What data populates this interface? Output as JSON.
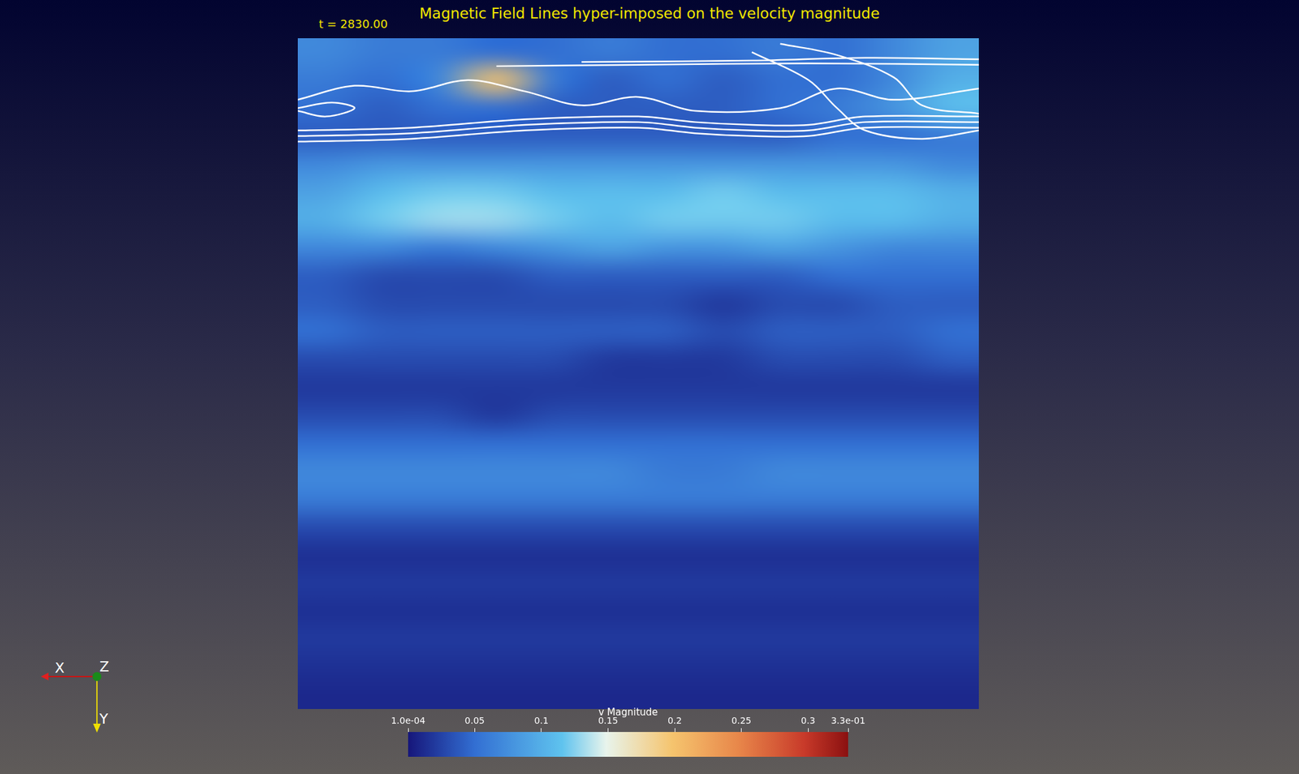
{
  "chart_data": {
    "type": "heatmap",
    "title": "Magnetic Field Lines hyper-imposed on the velocity magnitude",
    "annotations": [
      "t = 2830.00"
    ],
    "axes_triad": [
      "X",
      "Y",
      "Z"
    ],
    "tick_labels": false,
    "cells": [
      [
        0.07,
        0.06,
        0.06,
        0.05,
        0.05,
        0.06,
        0.05,
        0.05,
        0.06,
        0.05,
        0.07,
        0.09
      ],
      [
        0.06,
        0.05,
        0.07,
        0.2,
        0.06,
        0.04,
        0.05,
        0.04,
        0.05,
        0.05,
        0.07,
        0.1
      ],
      [
        0.05,
        0.04,
        0.05,
        0.05,
        0.04,
        0.04,
        0.04,
        0.04,
        0.05,
        0.06,
        0.08,
        0.11
      ],
      [
        0.04,
        0.04,
        0.04,
        0.04,
        0.04,
        0.04,
        0.04,
        0.04,
        0.04,
        0.05,
        0.05,
        0.06
      ],
      [
        0.07,
        0.08,
        0.08,
        0.08,
        0.08,
        0.08,
        0.08,
        0.08,
        0.08,
        0.08,
        0.08,
        0.07
      ],
      [
        0.09,
        0.11,
        0.12,
        0.12,
        0.11,
        0.11,
        0.11,
        0.12,
        0.11,
        0.11,
        0.11,
        0.1
      ],
      [
        0.1,
        0.12,
        0.13,
        0.13,
        0.12,
        0.11,
        0.12,
        0.12,
        0.12,
        0.11,
        0.11,
        0.1
      ],
      [
        0.07,
        0.07,
        0.06,
        0.07,
        0.08,
        0.09,
        0.08,
        0.08,
        0.09,
        0.08,
        0.07,
        0.07
      ],
      [
        0.04,
        0.03,
        0.03,
        0.03,
        0.04,
        0.04,
        0.04,
        0.04,
        0.04,
        0.05,
        0.05,
        0.05
      ],
      [
        0.04,
        0.03,
        0.03,
        0.03,
        0.03,
        0.03,
        0.03,
        0.02,
        0.03,
        0.03,
        0.04,
        0.04
      ],
      [
        0.05,
        0.04,
        0.04,
        0.04,
        0.04,
        0.04,
        0.04,
        0.03,
        0.04,
        0.04,
        0.04,
        0.05
      ],
      [
        0.03,
        0.03,
        0.03,
        0.03,
        0.03,
        0.02,
        0.02,
        0.02,
        0.03,
        0.03,
        0.03,
        0.04
      ],
      [
        0.02,
        0.02,
        0.02,
        0.02,
        0.02,
        0.02,
        0.02,
        0.02,
        0.02,
        0.02,
        0.02,
        0.02
      ],
      [
        0.03,
        0.03,
        0.03,
        0.02,
        0.03,
        0.03,
        0.03,
        0.03,
        0.03,
        0.03,
        0.03,
        0.03
      ],
      [
        0.05,
        0.05,
        0.05,
        0.05,
        0.05,
        0.05,
        0.05,
        0.05,
        0.05,
        0.05,
        0.05,
        0.05
      ],
      [
        0.07,
        0.07,
        0.07,
        0.07,
        0.07,
        0.07,
        0.06,
        0.06,
        0.07,
        0.07,
        0.07,
        0.07
      ],
      [
        0.06,
        0.06,
        0.06,
        0.06,
        0.06,
        0.06,
        0.06,
        0.06,
        0.06,
        0.06,
        0.06,
        0.06
      ],
      [
        0.03,
        0.03,
        0.03,
        0.03,
        0.03,
        0.03,
        0.03,
        0.03,
        0.03,
        0.03,
        0.03,
        0.03
      ],
      [
        0.015,
        0.015,
        0.015,
        0.015,
        0.015,
        0.015,
        0.015,
        0.015,
        0.015,
        0.015,
        0.015,
        0.015
      ],
      [
        0.02,
        0.02,
        0.02,
        0.02,
        0.02,
        0.02,
        0.02,
        0.02,
        0.02,
        0.02,
        0.02,
        0.02
      ],
      [
        0.015,
        0.015,
        0.015,
        0.015,
        0.015,
        0.015,
        0.015,
        0.015,
        0.015,
        0.015,
        0.015,
        0.015
      ],
      [
        0.02,
        0.02,
        0.02,
        0.02,
        0.02,
        0.02,
        0.02,
        0.02,
        0.02,
        0.02,
        0.02,
        0.02
      ],
      [
        0.015,
        0.015,
        0.015,
        0.015,
        0.015,
        0.015,
        0.015,
        0.015,
        0.015,
        0.015,
        0.015,
        0.015
      ],
      [
        0.01,
        0.01,
        0.01,
        0.01,
        0.01,
        0.01,
        0.01,
        0.01,
        0.01,
        0.01,
        0.01,
        0.01
      ]
    ],
    "field_lines": [
      [
        [
          3.5,
          1.0
        ],
        [
          6,
          0.95
        ],
        [
          9,
          0.9
        ],
        [
          12,
          0.95
        ]
      ],
      [
        [
          5,
          0.85
        ],
        [
          8,
          0.8
        ],
        [
          10,
          0.7
        ],
        [
          12,
          0.75
        ]
      ],
      [
        [
          0,
          3.5
        ],
        [
          2,
          3.4
        ],
        [
          4,
          3.1
        ],
        [
          6,
          3.0
        ],
        [
          7,
          3.2
        ],
        [
          8,
          3.3
        ],
        [
          9,
          3.3
        ],
        [
          10,
          3.0
        ],
        [
          12,
          3.0
        ]
      ],
      [
        [
          0,
          3.7
        ],
        [
          2,
          3.6
        ],
        [
          4,
          3.3
        ],
        [
          6,
          3.2
        ],
        [
          7,
          3.4
        ],
        [
          8,
          3.5
        ],
        [
          9,
          3.5
        ],
        [
          10,
          3.2
        ],
        [
          12,
          3.2
        ]
      ],
      [
        [
          0,
          3.3
        ],
        [
          2,
          3.2
        ],
        [
          4,
          2.9
        ],
        [
          6,
          2.8
        ],
        [
          7,
          3.0
        ],
        [
          8,
          3.1
        ],
        [
          9,
          3.1
        ],
        [
          10,
          2.8
        ],
        [
          12,
          2.8
        ]
      ],
      [
        [
          0,
          2.2
        ],
        [
          1,
          1.7
        ],
        [
          2,
          1.9
        ],
        [
          3,
          1.5
        ],
        [
          4,
          1.9
        ],
        [
          5,
          2.4
        ],
        [
          6,
          2.1
        ],
        [
          7,
          2.6
        ],
        [
          8.5,
          2.5
        ],
        [
          9.5,
          1.8
        ],
        [
          10.5,
          2.2
        ],
        [
          12,
          1.8
        ]
      ],
      [
        [
          0,
          2.6
        ],
        [
          0.5,
          2.8
        ],
        [
          1,
          2.5
        ],
        [
          0.6,
          2.3
        ],
        [
          0,
          2.5
        ]
      ],
      [
        [
          8,
          0.5
        ],
        [
          9,
          1.5
        ],
        [
          9.5,
          2.5
        ],
        [
          10,
          3.3
        ],
        [
          11,
          3.6
        ],
        [
          12,
          3.3
        ]
      ],
      [
        [
          8.5,
          0.2
        ],
        [
          9.5,
          0.6
        ],
        [
          10.5,
          1.4
        ],
        [
          11,
          2.4
        ],
        [
          12,
          2.7
        ]
      ]
    ],
    "colorbar": {
      "title": "v Magnitude",
      "range": [
        0.0001,
        0.33
      ],
      "ticks": [
        {
          "value": 0.0001,
          "label": "1.0e-04"
        },
        0.05,
        0.1,
        0.15,
        0.2,
        0.25,
        0.3,
        {
          "value": 0.33,
          "label": "3.3e-01"
        }
      ]
    }
  }
}
